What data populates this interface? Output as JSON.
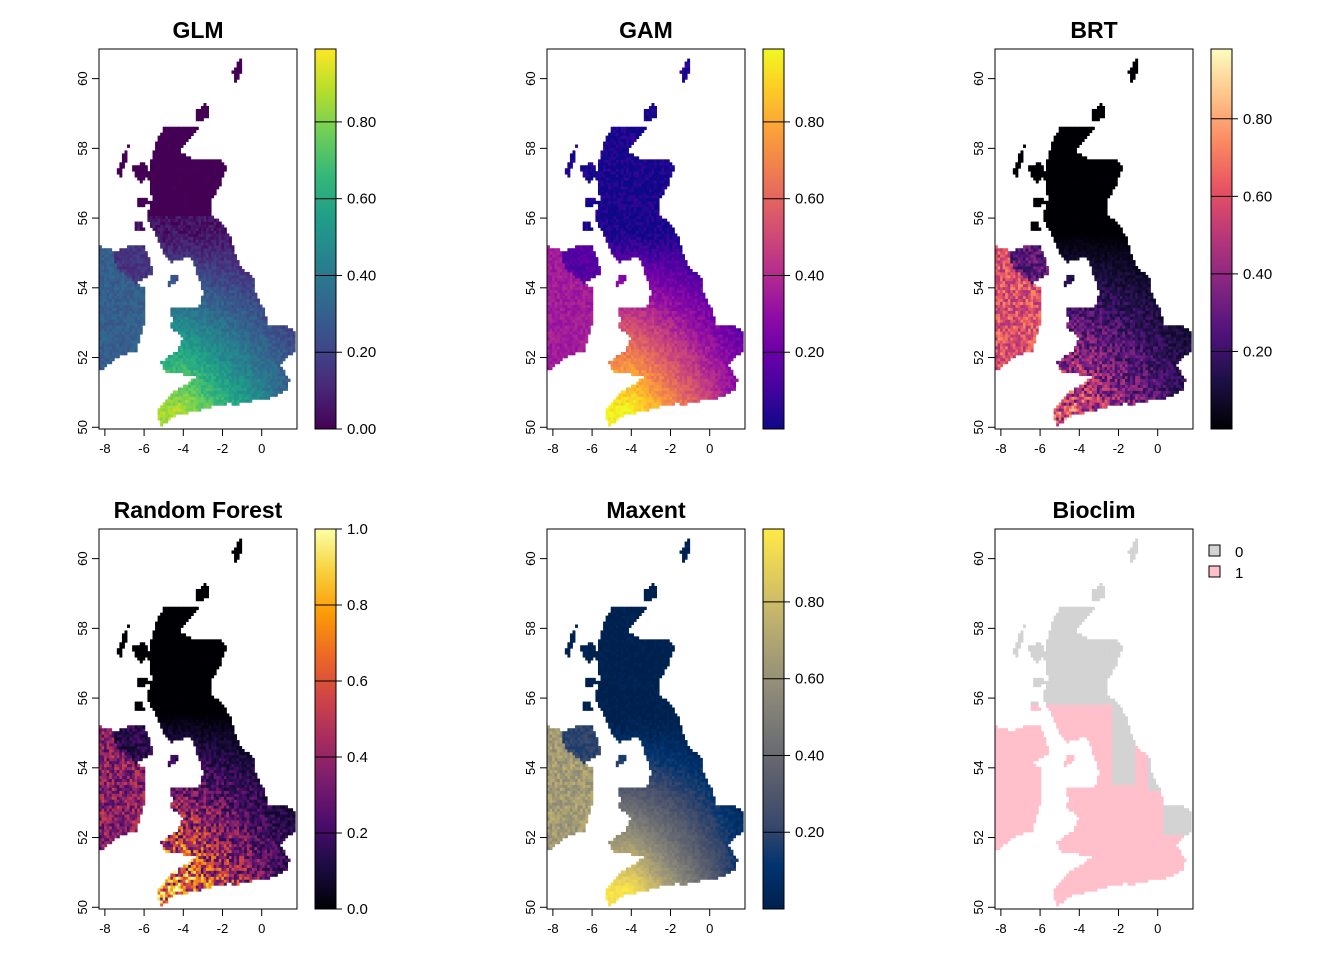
{
  "figure": {
    "x_ticks": [
      "-8",
      "-6",
      "-4",
      "-2",
      "0"
    ],
    "y_ticks": [
      "50",
      "52",
      "54",
      "56",
      "58",
      "60"
    ],
    "x_tick_values": [
      -8,
      -6,
      -4,
      -2,
      0
    ],
    "y_tick_values": [
      50,
      52,
      54,
      56,
      58,
      60
    ],
    "xlim": [
      -8.3,
      1.8
    ],
    "ylim": [
      49.95,
      60.85
    ]
  },
  "panels": [
    {
      "id": "glm",
      "title": "GLM",
      "palette": "viridis",
      "palette_stops": [
        "#440154",
        "#482878",
        "#3e4a89",
        "#31688e",
        "#26828e",
        "#1f9e89",
        "#35b779",
        "#6ece58",
        "#b5de2b",
        "#fde725"
      ],
      "colorbar_ticks": [
        "0.00",
        "0.20",
        "0.40",
        "0.60",
        "0.80"
      ],
      "colorbar_tick_values": [
        0.0,
        0.2,
        0.4,
        0.6,
        0.8
      ],
      "colorbar_range": [
        0.0,
        0.99
      ]
    },
    {
      "id": "gam",
      "title": "GAM",
      "palette": "plasma",
      "palette_stops": [
        "#0d0887",
        "#41049d",
        "#6a00a8",
        "#8f0da4",
        "#b12a90",
        "#cc4778",
        "#e16462",
        "#f2844b",
        "#fca636",
        "#fcce25",
        "#f0f921"
      ],
      "colorbar_ticks": [
        "0.20",
        "0.40",
        "0.60",
        "0.80"
      ],
      "colorbar_tick_values": [
        0.2,
        0.4,
        0.6,
        0.8
      ],
      "colorbar_range": [
        0.0,
        0.99
      ]
    },
    {
      "id": "brt",
      "title": "BRT",
      "palette": "magma",
      "palette_stops": [
        "#000004",
        "#1c1044",
        "#4f127b",
        "#812581",
        "#b5367a",
        "#e55064",
        "#fb8761",
        "#fec287",
        "#fcfdbf"
      ],
      "colorbar_ticks": [
        "0.20",
        "0.40",
        "0.60",
        "0.80"
      ],
      "colorbar_tick_values": [
        0.2,
        0.4,
        0.6,
        0.8
      ],
      "colorbar_range": [
        0.0,
        0.98
      ]
    },
    {
      "id": "rf",
      "title": "Random Forest",
      "palette": "inferno",
      "palette_stops": [
        "#000004",
        "#1b0c41",
        "#4a0c6b",
        "#781c6d",
        "#a52c60",
        "#cf4446",
        "#ed6925",
        "#fb9b06",
        "#f7d13d",
        "#fcffa4"
      ],
      "colorbar_ticks": [
        "0.0",
        "0.2",
        "0.4",
        "0.6",
        "0.8",
        "1.0"
      ],
      "colorbar_tick_values": [
        0.0,
        0.2,
        0.4,
        0.6,
        0.8,
        1.0
      ],
      "colorbar_range": [
        0.0,
        1.0
      ]
    },
    {
      "id": "maxent",
      "title": "Maxent",
      "palette": "cividis",
      "palette_stops": [
        "#00204d",
        "#00336f",
        "#39486b",
        "#575c6d",
        "#707173",
        "#8a8779",
        "#a69d75",
        "#c4b56c",
        "#e4cf5b",
        "#ffea46"
      ],
      "colorbar_ticks": [
        "0.20",
        "0.40",
        "0.60",
        "0.80"
      ],
      "colorbar_tick_values": [
        0.2,
        0.4,
        0.6,
        0.8
      ],
      "colorbar_range": [
        0.0,
        0.99
      ]
    },
    {
      "id": "bioclim",
      "title": "Bioclim",
      "palette": "binary",
      "legend": [
        {
          "label": "0",
          "color": "#d3d3d3"
        },
        {
          "label": "1",
          "color": "#ffc0cb"
        }
      ]
    }
  ]
}
